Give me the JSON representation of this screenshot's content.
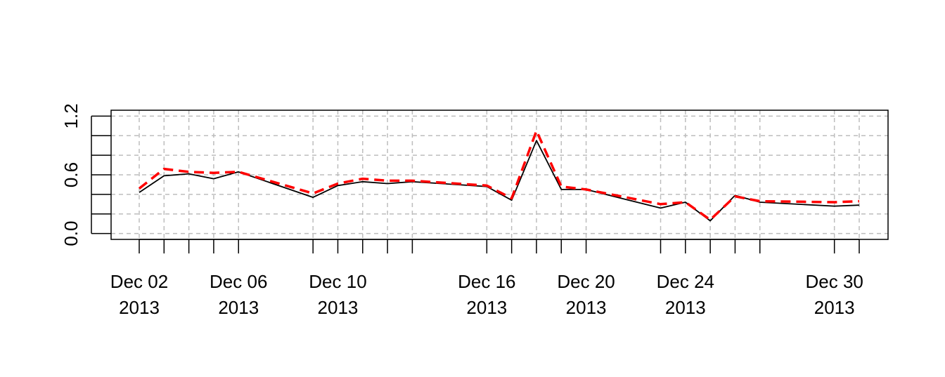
{
  "chart_data": {
    "type": "line",
    "title": "",
    "xlabel": "",
    "ylabel": "",
    "x": [
      "2013-12-02",
      "2013-12-03",
      "2013-12-04",
      "2013-12-05",
      "2013-12-06",
      "2013-12-09",
      "2013-12-10",
      "2013-12-11",
      "2013-12-12",
      "2013-12-13",
      "2013-12-16",
      "2013-12-17",
      "2013-12-18",
      "2013-12-19",
      "2013-12-20",
      "2013-12-23",
      "2013-12-24",
      "2013-12-25",
      "2013-12-26",
      "2013-12-27",
      "2013-12-30",
      "2013-12-31"
    ],
    "series": [
      {
        "values": [
          0.42,
          0.59,
          0.61,
          0.56,
          0.63,
          0.37,
          0.49,
          0.53,
          0.51,
          0.53,
          0.48,
          0.34,
          0.95,
          0.45,
          0.45,
          0.26,
          0.32,
          0.13,
          0.39,
          0.32,
          0.28,
          0.29
        ],
        "color": "#000000",
        "style": "solid"
      },
      {
        "values": [
          0.46,
          0.66,
          0.63,
          0.62,
          0.63,
          0.41,
          0.51,
          0.56,
          0.54,
          0.54,
          0.49,
          0.36,
          1.05,
          0.48,
          0.45,
          0.3,
          0.32,
          0.14,
          0.38,
          0.33,
          0.32,
          0.33
        ],
        "color": "#ff0000",
        "style": "dashed"
      }
    ],
    "ylim": [
      -0.06,
      1.26
    ],
    "y_ticks": [
      "0.0",
      "0.6",
      "1.2"
    ],
    "x_tick_labels": [
      {
        "date": "2013-12-02",
        "line1": "Dec 02",
        "line2": "2013"
      },
      {
        "date": "2013-12-06",
        "line1": "Dec 06",
        "line2": "2013"
      },
      {
        "date": "2013-12-10",
        "line1": "Dec 10",
        "line2": "2013"
      },
      {
        "date": "2013-12-16",
        "line1": "Dec 16",
        "line2": "2013"
      },
      {
        "date": "2013-12-20",
        "line1": "Dec 20",
        "line2": "2013"
      },
      {
        "date": "2013-12-24",
        "line1": "Dec 24",
        "line2": "2013"
      },
      {
        "date": "2013-12-30",
        "line1": "Dec 30",
        "line2": "2013"
      }
    ],
    "grid": true,
    "legend": "none"
  }
}
